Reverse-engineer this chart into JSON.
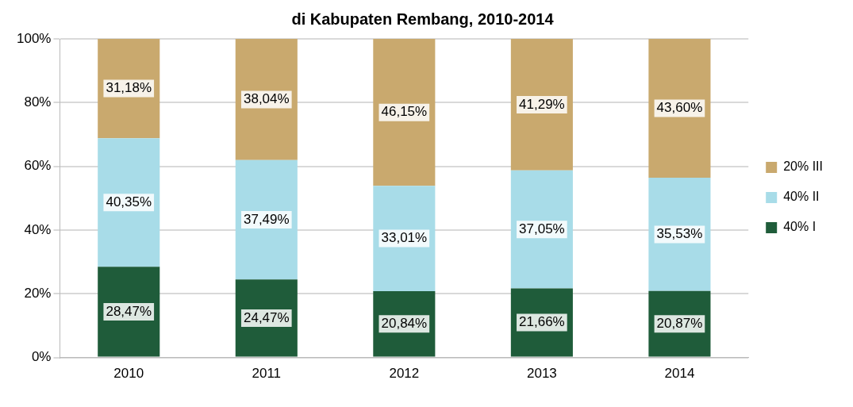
{
  "chart_data": {
    "type": "bar",
    "title": "di Kabupaten Rembang, 2010-2014",
    "stacked": true,
    "categories": [
      "2010",
      "2011",
      "2012",
      "2013",
      "2014"
    ],
    "series": [
      {
        "name": "40% I",
        "color": "#1f5c3a",
        "values": [
          28.47,
          24.47,
          20.84,
          21.66,
          20.87
        ],
        "value_labels": [
          "28,47%",
          "24,47%",
          "20,84%",
          "21,66%",
          "20,87%"
        ]
      },
      {
        "name": "40% II",
        "color": "#a8dce8",
        "values": [
          40.35,
          37.49,
          33.01,
          37.05,
          35.53
        ],
        "value_labels": [
          "40,35%",
          "37,49%",
          "33,01%",
          "37,05%",
          "35,53%"
        ]
      },
      {
        "name": "20% III",
        "color": "#c9a96e",
        "values": [
          31.18,
          38.04,
          46.15,
          41.29,
          43.6
        ],
        "value_labels": [
          "31,18%",
          "38,04%",
          "46,15%",
          "41,29%",
          "43,60%"
        ]
      }
    ],
    "ylim": [
      0,
      100
    ],
    "yticks": [
      {
        "value": 0,
        "label": "0%"
      },
      {
        "value": 20,
        "label": "20%"
      },
      {
        "value": 40,
        "label": "40%"
      },
      {
        "value": 60,
        "label": "60%"
      },
      {
        "value": 80,
        "label": "80%"
      },
      {
        "value": 100,
        "label": "100%"
      }
    ],
    "grid": "y",
    "legend": "right"
  }
}
